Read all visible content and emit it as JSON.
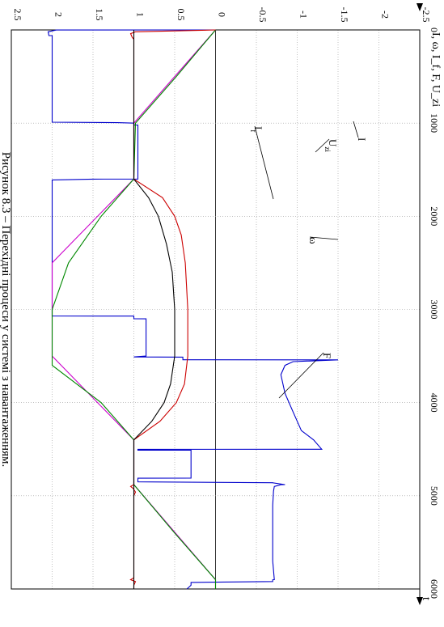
{
  "chart_data": {
    "type": "line",
    "orientation": "rotated 90° clockwise (t axis runs downward, value axis runs left)",
    "xlabel": "t",
    "ylabel": "I, ω, I_f, F, U_zi",
    "xlim": [
      0,
      6000
    ],
    "ylim": [
      -2.5,
      2.5
    ],
    "x_ticks": [
      "0",
      "1000",
      "2000",
      "3000",
      "4000",
      "5000",
      "6000"
    ],
    "y_ticks": [
      "-2.5",
      "-2",
      "-1.5",
      "-1",
      "-0.5",
      "0",
      "0.5",
      "1",
      "1.5",
      "2",
      "2.5"
    ],
    "grid": true,
    "caption": "Рисунок 8.3 – Перехідні процеси у системі з навантаженням.",
    "annotations": [
      {
        "text": "I",
        "sub": "",
        "target": "I"
      },
      {
        "text": "U",
        "sub": "zi",
        "target": "U_zi"
      },
      {
        "text": "I",
        "sub": "f",
        "target": "I_f"
      },
      {
        "text": "ω",
        "sub": "",
        "target": "ω"
      },
      {
        "text": "F",
        "sub": "",
        "target": "F"
      }
    ],
    "series": [
      {
        "name": "I",
        "color": "#0000cc",
        "x": [
          0,
          1,
          20,
          60,
          61,
          900,
          990,
          995,
          1000,
          1020,
          1021,
          1600,
          1601,
          1610,
          2500,
          3000,
          3070,
          3071,
          3100,
          3101,
          3500,
          3510,
          3511,
          3530,
          3540,
          3541,
          3560,
          3600,
          3700,
          3900,
          4100,
          4300,
          4400,
          4500,
          4501,
          4510,
          4511,
          4800,
          4810,
          4811,
          4850,
          4860,
          4861,
          4880,
          4881,
          4900,
          4950,
          5100,
          5400,
          5700,
          5900,
          5901,
          5920,
          5930,
          5931,
          5960,
          6000
        ],
        "y": [
          0,
          1.95,
          2.05,
          2.04,
          2.0,
          2.0,
          2.0,
          1.2,
          1.0,
          1.0,
          0.95,
          0.95,
          1.5,
          2.0,
          2.0,
          2.0,
          2.0,
          1.0,
          1.0,
          0.85,
          0.85,
          1.0,
          0.4,
          0.4,
          0.4,
          -1.5,
          -0.95,
          -0.85,
          -0.8,
          -0.85,
          -0.95,
          -1.05,
          -1.2,
          -1.3,
          0.95,
          0.95,
          0.3,
          0.3,
          0.3,
          0.95,
          0.95,
          -0.7,
          -0.7,
          -0.85,
          -0.8,
          -0.72,
          -0.71,
          -0.7,
          -0.7,
          -0.7,
          -0.72,
          -0.7,
          -0.7,
          0.3,
          0.3,
          0.3,
          0.35
        ]
      },
      {
        "name": "U_zi",
        "color": "#cc00cc",
        "x": [
          0,
          1000,
          1600,
          2500,
          3500,
          4400,
          4880,
          5900,
          6000
        ],
        "y": [
          0,
          1.0,
          1.0,
          2.0,
          2.0,
          1.0,
          1.0,
          0.0,
          0.0
        ]
      },
      {
        "name": "ω",
        "color": "#008800",
        "x": [
          0,
          500,
          1000,
          1600,
          2000,
          2500,
          3000,
          3070,
          3600,
          4000,
          4400,
          4880,
          5400,
          5900,
          6000
        ],
        "y": [
          0,
          0.48,
          0.98,
          1.0,
          1.4,
          1.8,
          2.0,
          2.0,
          2.0,
          1.4,
          1.0,
          1.0,
          0.5,
          0.0,
          0.0
        ]
      },
      {
        "name": "I_f",
        "color": "#cc0000",
        "x": [
          0,
          20,
          40,
          80,
          100,
          1000,
          1600,
          1800,
          2000,
          2200,
          2500,
          3000,
          3500,
          3800,
          4000,
          4200,
          4400,
          4880,
          4900,
          4920,
          4960,
          5000,
          5880,
          5900,
          5920,
          5960,
          6000
        ],
        "y": [
          0,
          0.98,
          1.04,
          1.02,
          1.0,
          1.0,
          1.0,
          0.65,
          0.5,
          0.42,
          0.37,
          0.34,
          0.34,
          0.38,
          0.48,
          0.68,
          1.0,
          1.0,
          1.04,
          1.01,
          0.98,
          1.0,
          1.0,
          1.04,
          0.98,
          1.0,
          1.0
        ]
      },
      {
        "name": "F",
        "color": "#000000",
        "x": [
          0,
          1000,
          1600,
          1800,
          2000,
          2300,
          2600,
          3000,
          3500,
          3800,
          4000,
          4200,
          4400,
          5000,
          6000
        ],
        "y": [
          1.0,
          1.0,
          1.0,
          0.82,
          0.7,
          0.6,
          0.53,
          0.5,
          0.5,
          0.55,
          0.63,
          0.78,
          1.0,
          1.0,
          1.0
        ]
      }
    ]
  }
}
